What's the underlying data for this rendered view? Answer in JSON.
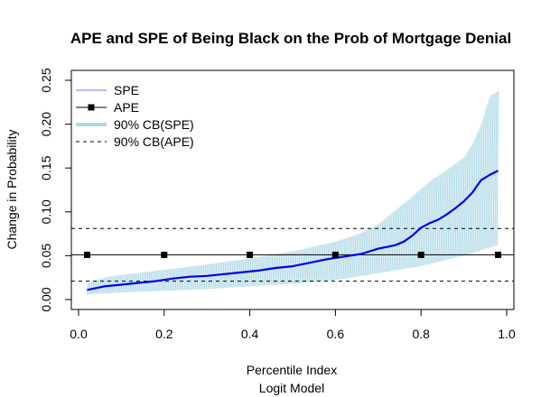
{
  "chart_data": {
    "type": "line",
    "title": "APE and SPE of Being Black on the Prob of Mortgage Denial",
    "xlabel": "Percentile Index",
    "xlabel2": "Logit Model",
    "ylabel": "Change in Probability",
    "xlim": [
      0.0,
      1.0
    ],
    "ylim": [
      0.0,
      0.25
    ],
    "x_ticks": [
      "0.0",
      "0.2",
      "0.4",
      "0.6",
      "0.8",
      "1.0"
    ],
    "y_ticks": [
      "0.00",
      "0.05",
      "0.10",
      "0.15",
      "0.20",
      "0.25"
    ],
    "legend_position": "top-left",
    "legend": [
      {
        "label": "SPE",
        "style": "line",
        "color": "#7b68ee"
      },
      {
        "label": "APE",
        "style": "line-square",
        "color": "#000000"
      },
      {
        "label": "90% CB(SPE)",
        "style": "thick-line",
        "color": "#add8e6"
      },
      {
        "label": "90% CB(APE)",
        "style": "dashed",
        "color": "#000000"
      }
    ],
    "colors": {
      "spe": "#0000ee",
      "band": "#add8e6",
      "ape": "#000000"
    },
    "series": [
      {
        "name": "SPE",
        "x": [
          0.02,
          0.06,
          0.1,
          0.14,
          0.18,
          0.22,
          0.26,
          0.3,
          0.34,
          0.38,
          0.42,
          0.46,
          0.5,
          0.54,
          0.58,
          0.62,
          0.66,
          0.7,
          0.72,
          0.74,
          0.76,
          0.78,
          0.8,
          0.82,
          0.84,
          0.86,
          0.88,
          0.9,
          0.92,
          0.94,
          0.96,
          0.98
        ],
        "y": [
          0.011,
          0.015,
          0.017,
          0.019,
          0.021,
          0.024,
          0.026,
          0.027,
          0.029,
          0.031,
          0.033,
          0.036,
          0.038,
          0.042,
          0.046,
          0.049,
          0.052,
          0.058,
          0.06,
          0.062,
          0.066,
          0.073,
          0.082,
          0.087,
          0.091,
          0.097,
          0.104,
          0.112,
          0.122,
          0.136,
          0.142,
          0.147
        ]
      },
      {
        "name": "90% CB(SPE) lower",
        "x": [
          0.02,
          0.1,
          0.2,
          0.3,
          0.4,
          0.5,
          0.6,
          0.7,
          0.8,
          0.9,
          0.98
        ],
        "y": [
          0.006,
          0.008,
          0.01,
          0.012,
          0.015,
          0.018,
          0.022,
          0.03,
          0.038,
          0.05,
          0.062
        ]
      },
      {
        "name": "90% CB(SPE) upper",
        "x": [
          0.02,
          0.06,
          0.1,
          0.2,
          0.3,
          0.4,
          0.5,
          0.6,
          0.66,
          0.7,
          0.74,
          0.78,
          0.82,
          0.86,
          0.9,
          0.92,
          0.94,
          0.96,
          0.98
        ],
        "y": [
          0.019,
          0.025,
          0.028,
          0.034,
          0.04,
          0.047,
          0.055,
          0.066,
          0.076,
          0.086,
          0.102,
          0.118,
          0.135,
          0.148,
          0.162,
          0.178,
          0.2,
          0.232,
          0.238
        ]
      },
      {
        "name": "APE",
        "x": [
          0.02,
          0.2,
          0.4,
          0.6,
          0.8,
          0.98
        ],
        "y": [
          0.051,
          0.051,
          0.051,
          0.051,
          0.051,
          0.051
        ]
      }
    ],
    "ape_value": 0.051,
    "ape_cb": [
      0.021,
      0.081
    ]
  }
}
